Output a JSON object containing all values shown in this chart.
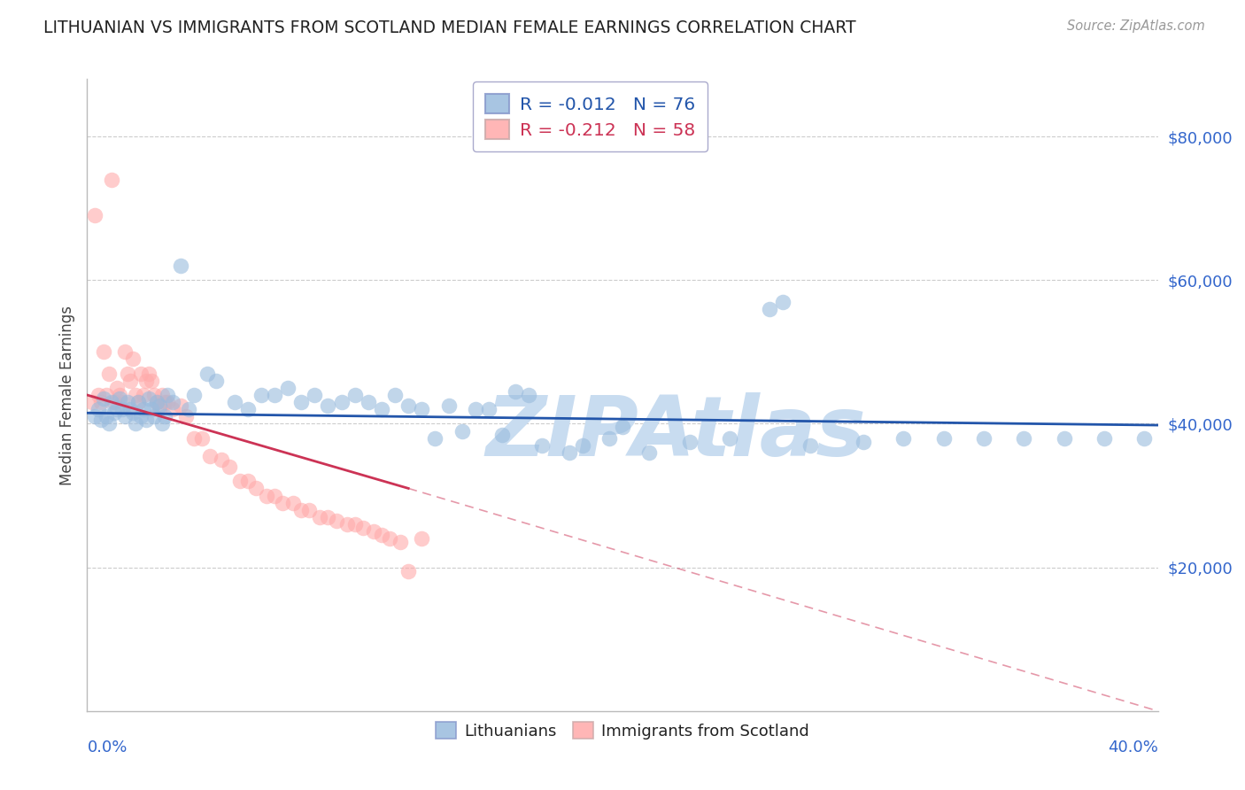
{
  "title": "LITHUANIAN VS IMMIGRANTS FROM SCOTLAND MEDIAN FEMALE EARNINGS CORRELATION CHART",
  "source": "Source: ZipAtlas.com",
  "ylabel": "Median Female Earnings",
  "xlim": [
    0.0,
    40.0
  ],
  "ylim": [
    0,
    88000
  ],
  "y_ticks": [
    20000,
    40000,
    60000,
    80000
  ],
  "y_tick_labels": [
    "$20,000",
    "$40,000",
    "$60,000",
    "$80,000"
  ],
  "series1_label": "Lithuanians",
  "series2_label": "Immigrants from Scotland",
  "series1_color": "#99BBDD",
  "series2_color": "#FFAAAA",
  "line1_color": "#2255AA",
  "line2_color": "#CC3355",
  "line2_dash_color": "#FFAACC",
  "watermark": "ZIPAtlas",
  "watermark_color": "#C8DCF0",
  "background_color": "#FFFFFF",
  "grid_color": "#CCCCCC",
  "title_color": "#222222",
  "source_color": "#999999",
  "axis_label_color": "#3366CC",
  "ylabel_color": "#444444",
  "legend_R1": "-0.012",
  "legend_N1": "76",
  "legend_R2": "-0.212",
  "legend_N2": "58",
  "series1_x": [
    0.3,
    0.4,
    0.5,
    0.6,
    0.7,
    0.8,
    0.9,
    1.0,
    1.1,
    1.2,
    1.3,
    1.4,
    1.5,
    1.6,
    1.7,
    1.8,
    1.9,
    2.0,
    2.1,
    2.2,
    2.3,
    2.4,
    2.5,
    2.6,
    2.7,
    2.8,
    2.9,
    3.0,
    3.2,
    3.5,
    3.8,
    4.0,
    4.5,
    5.5,
    6.0,
    7.0,
    8.0,
    9.0,
    10.0,
    11.0,
    12.0,
    13.0,
    14.0,
    15.5,
    17.0,
    18.0,
    19.5,
    21.0,
    22.5,
    24.0,
    25.5,
    27.0,
    29.0,
    30.5,
    32.0,
    33.5,
    35.0,
    36.5,
    38.0,
    39.5,
    20.0,
    26.0,
    7.5,
    8.5,
    10.5,
    12.5,
    14.5,
    16.5,
    4.8,
    6.5,
    9.5,
    11.5,
    13.5,
    15.0,
    16.0,
    18.5
  ],
  "series1_y": [
    41000,
    42000,
    40500,
    43500,
    41000,
    40000,
    43000,
    41500,
    42000,
    43500,
    42000,
    41000,
    43000,
    42000,
    41500,
    40000,
    43000,
    41000,
    42000,
    40500,
    43500,
    42000,
    41000,
    43000,
    42500,
    40000,
    41000,
    44000,
    43000,
    62000,
    42000,
    44000,
    47000,
    43000,
    42000,
    44000,
    43000,
    42500,
    44000,
    42000,
    42500,
    38000,
    39000,
    38500,
    37000,
    36000,
    38000,
    36000,
    37500,
    38000,
    56000,
    37000,
    37500,
    38000,
    38000,
    38000,
    38000,
    38000,
    38000,
    38000,
    39500,
    57000,
    45000,
    44000,
    43000,
    42000,
    42000,
    44000,
    46000,
    44000,
    43000,
    44000,
    42500,
    42000,
    44500,
    37000
  ],
  "series2_x": [
    0.2,
    0.3,
    0.4,
    0.5,
    0.6,
    0.7,
    0.8,
    0.9,
    1.0,
    1.1,
    1.2,
    1.3,
    1.4,
    1.5,
    1.6,
    1.7,
    1.8,
    1.9,
    2.0,
    2.1,
    2.2,
    2.3,
    2.4,
    2.5,
    2.6,
    2.7,
    2.8,
    2.9,
    3.0,
    3.2,
    3.5,
    3.7,
    4.0,
    4.3,
    4.6,
    5.0,
    5.3,
    5.7,
    6.0,
    6.3,
    6.7,
    7.0,
    7.3,
    7.7,
    8.0,
    8.3,
    8.7,
    9.0,
    9.3,
    9.7,
    10.0,
    10.3,
    10.7,
    11.0,
    11.3,
    11.7,
    12.0,
    12.5
  ],
  "series2_y": [
    43000,
    69000,
    44000,
    43000,
    50000,
    44000,
    47000,
    74000,
    43000,
    45000,
    44000,
    43000,
    50000,
    47000,
    46000,
    49000,
    44000,
    43000,
    47000,
    44000,
    46000,
    47000,
    46000,
    44000,
    43000,
    42000,
    44000,
    43000,
    43000,
    42000,
    42500,
    41000,
    38000,
    38000,
    35500,
    35000,
    34000,
    32000,
    32000,
    31000,
    30000,
    30000,
    29000,
    29000,
    28000,
    28000,
    27000,
    27000,
    26500,
    26000,
    26000,
    25500,
    25000,
    24500,
    24000,
    23500,
    19500,
    24000
  ],
  "line1_x0": 0.0,
  "line1_x1": 40.0,
  "line1_y0": 41500,
  "line1_y1": 39800,
  "line2_solid_x0": 0.0,
  "line2_solid_x1": 12.0,
  "line2_solid_y0": 44000,
  "line2_solid_y1": 31000,
  "line2_dash_x0": 12.0,
  "line2_dash_x1": 40.0,
  "line2_dash_y0": 31000,
  "line2_dash_y1": 0
}
